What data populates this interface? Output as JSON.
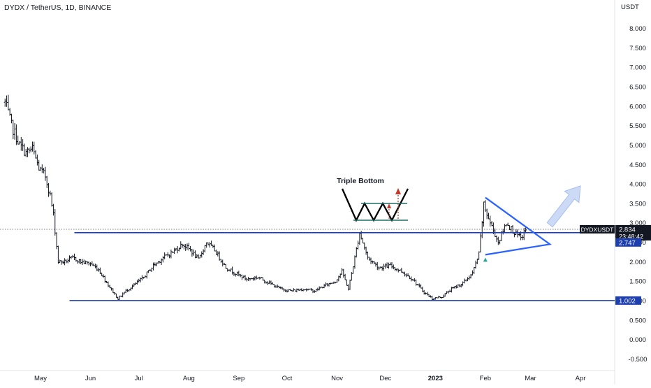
{
  "header": {
    "symbol_info": "DYDX / TetherUS, 1D, BINANCE"
  },
  "colors": {
    "candle": "#131722",
    "line": "#1e3fb0",
    "triangle": "#2962ff",
    "arrow_fill": "#c8d7f5",
    "arrow_stroke": "#9db8ee",
    "pattern_flat": "#1f6f63",
    "pattern_arrow": "#c0392b"
  },
  "chart_data": {
    "type": "ohlc_bar",
    "currency_label": "USDT",
    "y_ticks": [
      "8.000",
      "7.500",
      "7.000",
      "6.500",
      "6.000",
      "5.500",
      "5.000",
      "4.500",
      "4.000",
      "3.500",
      "3.000",
      "2.500",
      "2.000",
      "1.500",
      "1.000",
      "0.500",
      "0.000",
      "-0.500"
    ],
    "ylim": [
      -0.6,
      8.35
    ],
    "x_ticks": [
      "May",
      "Jun",
      "Jul",
      "Aug",
      "Sep",
      "Oct",
      "Nov",
      "Dec",
      "2023",
      "Feb",
      "Mar",
      "Apr"
    ],
    "x_tick_dates": [
      "2022-05-01",
      "2022-06-01",
      "2022-07-01",
      "2022-08-01",
      "2022-09-01",
      "2022-10-01",
      "2022-11-01",
      "2022-12-01",
      "2023-01-01",
      "2023-02-01",
      "2023-03-01",
      "2023-04-01"
    ],
    "closes": [
      {
        "date": "2022-04-09",
        "close": 6.1
      },
      {
        "date": "2022-04-13",
        "close": 5.5
      },
      {
        "date": "2022-04-18",
        "close": 5.0
      },
      {
        "date": "2022-04-22",
        "close": 4.8
      },
      {
        "date": "2022-04-26",
        "close": 4.9
      },
      {
        "date": "2022-04-30",
        "close": 4.4
      },
      {
        "date": "2022-05-04",
        "close": 4.2
      },
      {
        "date": "2022-05-07",
        "close": 3.7
      },
      {
        "date": "2022-05-09",
        "close": 3.2
      },
      {
        "date": "2022-05-12",
        "close": 2.0
      },
      {
        "date": "2022-05-16",
        "close": 2.0
      },
      {
        "date": "2022-05-21",
        "close": 2.1
      },
      {
        "date": "2022-05-26",
        "close": 2.0
      },
      {
        "date": "2022-06-01",
        "close": 1.95
      },
      {
        "date": "2022-06-06",
        "close": 1.8
      },
      {
        "date": "2022-06-12",
        "close": 1.4
      },
      {
        "date": "2022-06-18",
        "close": 1.05
      },
      {
        "date": "2022-06-23",
        "close": 1.25
      },
      {
        "date": "2022-06-28",
        "close": 1.4
      },
      {
        "date": "2022-07-04",
        "close": 1.6
      },
      {
        "date": "2022-07-10",
        "close": 1.9
      },
      {
        "date": "2022-07-16",
        "close": 2.1
      },
      {
        "date": "2022-07-22",
        "close": 2.25
      },
      {
        "date": "2022-07-28",
        "close": 2.45
      },
      {
        "date": "2022-08-02",
        "close": 2.3
      },
      {
        "date": "2022-08-07",
        "close": 2.05
      },
      {
        "date": "2022-08-12",
        "close": 2.5
      },
      {
        "date": "2022-08-17",
        "close": 2.3
      },
      {
        "date": "2022-08-24",
        "close": 1.85
      },
      {
        "date": "2022-08-30",
        "close": 1.7
      },
      {
        "date": "2022-09-06",
        "close": 1.55
      },
      {
        "date": "2022-09-13",
        "close": 1.6
      },
      {
        "date": "2022-09-20",
        "close": 1.45
      },
      {
        "date": "2022-09-27",
        "close": 1.3
      },
      {
        "date": "2022-10-04",
        "close": 1.25
      },
      {
        "date": "2022-10-11",
        "close": 1.3
      },
      {
        "date": "2022-10-18",
        "close": 1.25
      },
      {
        "date": "2022-10-25",
        "close": 1.4
      },
      {
        "date": "2022-10-31",
        "close": 1.5
      },
      {
        "date": "2022-11-04",
        "close": 1.75
      },
      {
        "date": "2022-11-08",
        "close": 1.3
      },
      {
        "date": "2022-11-12",
        "close": 2.1
      },
      {
        "date": "2022-11-15",
        "close": 2.75
      },
      {
        "date": "2022-11-20",
        "close": 2.1
      },
      {
        "date": "2022-11-27",
        "close": 1.85
      },
      {
        "date": "2022-12-04",
        "close": 1.9
      },
      {
        "date": "2022-12-11",
        "close": 1.75
      },
      {
        "date": "2022-12-18",
        "close": 1.55
      },
      {
        "date": "2022-12-24",
        "close": 1.25
      },
      {
        "date": "2022-12-30",
        "close": 1.05
      },
      {
        "date": "2023-01-05",
        "close": 1.1
      },
      {
        "date": "2023-01-11",
        "close": 1.3
      },
      {
        "date": "2023-01-18",
        "close": 1.45
      },
      {
        "date": "2023-01-24",
        "close": 1.7
      },
      {
        "date": "2023-01-28",
        "close": 2.2
      },
      {
        "date": "2023-01-31",
        "close": 3.45
      },
      {
        "date": "2023-02-04",
        "close": 3.0
      },
      {
        "date": "2023-02-09",
        "close": 2.5
      },
      {
        "date": "2023-02-14",
        "close": 3.0
      },
      {
        "date": "2023-02-19",
        "close": 2.75
      },
      {
        "date": "2023-02-23",
        "close": 2.6
      },
      {
        "date": "2023-02-26",
        "close": 2.83
      }
    ],
    "support_level": 1.002,
    "resistance_level": 2.747,
    "resistance_extension_start": "2022-05-22",
    "current_price": 2.834,
    "triangle": {
      "upper_start": {
        "date": "2023-02-01",
        "price": 3.65
      },
      "lower_start": {
        "date": "2023-02-01",
        "price": 2.18
      },
      "apex": {
        "date": "2023-03-13",
        "price": 2.45
      }
    },
    "projection_arrow": {
      "from": {
        "date": "2023-03-13",
        "price": 2.95
      },
      "to": {
        "date": "2023-04-01",
        "price": 3.95
      }
    },
    "pattern_annotation": {
      "label": "Triple Bottom"
    },
    "price_labels": [
      {
        "id": "current",
        "ticker": "DYDXUSDT",
        "price": "2.834",
        "countdown": "23:48:42"
      },
      {
        "id": "resistance",
        "price": "2.747"
      },
      {
        "id": "support",
        "price": "1.002"
      }
    ]
  }
}
